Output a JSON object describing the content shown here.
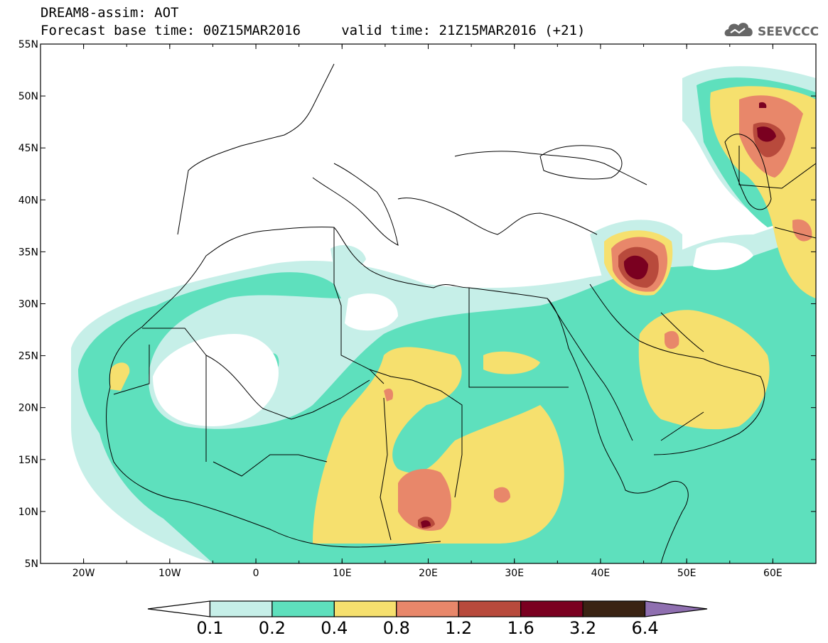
{
  "header": {
    "line1": "DREAM8-assim: AOT",
    "line2": "Forecast base time: 00Z15MAR2016     valid time: 21Z15MAR2016 (+21)"
  },
  "logo": {
    "text": "SEEVCCC",
    "icon": "cloud-logo-icon"
  },
  "map": {
    "lon_range": [
      -25,
      65
    ],
    "lat_range": [
      5,
      55
    ],
    "x_ticks": [
      {
        "value": -20,
        "label": "20W"
      },
      {
        "value": -10,
        "label": "10W"
      },
      {
        "value": 0,
        "label": "0"
      },
      {
        "value": 10,
        "label": "10E"
      },
      {
        "value": 20,
        "label": "20E"
      },
      {
        "value": 30,
        "label": "30E"
      },
      {
        "value": 40,
        "label": "40E"
      },
      {
        "value": 50,
        "label": "50E"
      },
      {
        "value": 60,
        "label": "60E"
      }
    ],
    "y_ticks": [
      {
        "value": 55,
        "label": "55N"
      },
      {
        "value": 50,
        "label": "50N"
      },
      {
        "value": 45,
        "label": "45N"
      },
      {
        "value": 40,
        "label": "40N"
      },
      {
        "value": 35,
        "label": "35N"
      },
      {
        "value": 30,
        "label": "30N"
      },
      {
        "value": 25,
        "label": "25N"
      },
      {
        "value": 20,
        "label": "20N"
      },
      {
        "value": 15,
        "label": "15N"
      },
      {
        "value": 10,
        "label": "10N"
      },
      {
        "value": 5,
        "label": "5N"
      }
    ]
  },
  "colorbar": {
    "levels": [
      "0.1",
      "0.2",
      "0.4",
      "0.8",
      "1.2",
      "1.6",
      "3.2",
      "6.4"
    ],
    "colors": [
      "#ffffff",
      "#c6efe8",
      "#5ee0bd",
      "#f6e06e",
      "#e8876a",
      "#b84a3c",
      "#7a0020",
      "#3a2313",
      "#8f6fb0"
    ]
  }
}
